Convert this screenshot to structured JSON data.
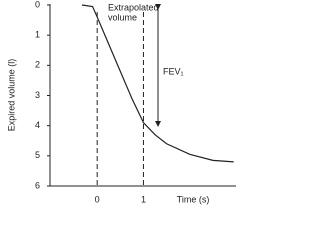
{
  "chart_data": {
    "type": "line",
    "x": [
      -0.33,
      -0.1,
      0,
      0.25,
      0.5,
      0.75,
      1,
      1.25,
      1.5,
      2,
      2.5,
      2.95
    ],
    "series": [
      {
        "color": "#222222",
        "values": [
          0,
          0.05,
          0.4,
          1.3,
          2.2,
          3.1,
          3.9,
          4.3,
          4.6,
          4.95,
          5.15,
          5.2
        ]
      }
    ],
    "xlim": [
      -1.02,
      3.0
    ],
    "xticks": [
      0,
      1
    ],
    "x_label": "Time (s)",
    "ylim": [
      0,
      6
    ],
    "yticks": [
      0,
      1,
      2,
      3,
      4,
      5,
      6
    ],
    "y_inverted": true,
    "y_label": "Expired volume (l)",
    "annotations": {
      "extrapolated": [
        "Extrapolated",
        "volume"
      ],
      "fev": "FEV₁"
    }
  }
}
